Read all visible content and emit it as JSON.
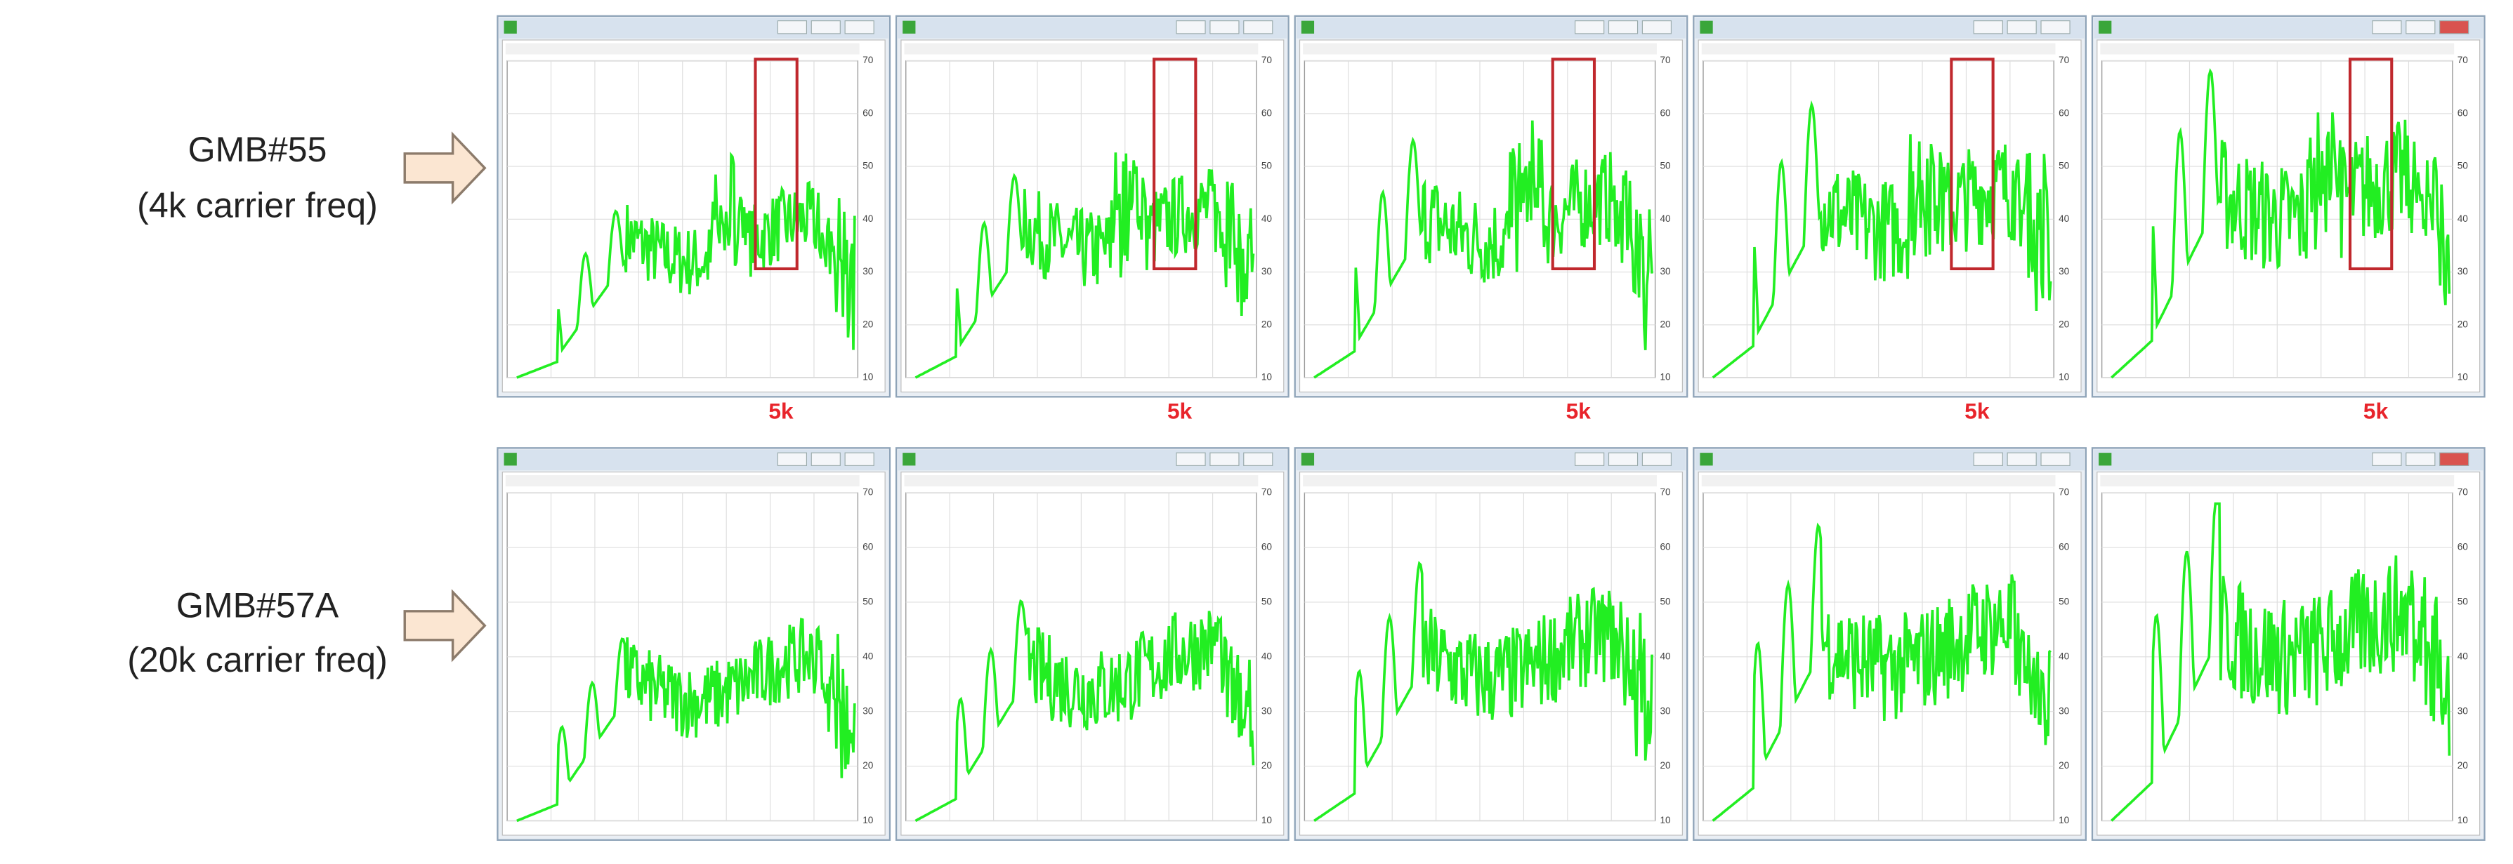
{
  "rows": [
    {
      "name": "GMB#55",
      "subtitle": "(4k carrier freq)",
      "marker_labels": [
        "5k",
        "5k",
        "5k",
        "5k",
        "5k"
      ]
    },
    {
      "name": "GMB#57A",
      "subtitle": "(20k carrier freq)"
    }
  ],
  "y_axis_ticks": [
    70,
    60,
    50,
    40,
    30,
    20,
    10
  ]
}
